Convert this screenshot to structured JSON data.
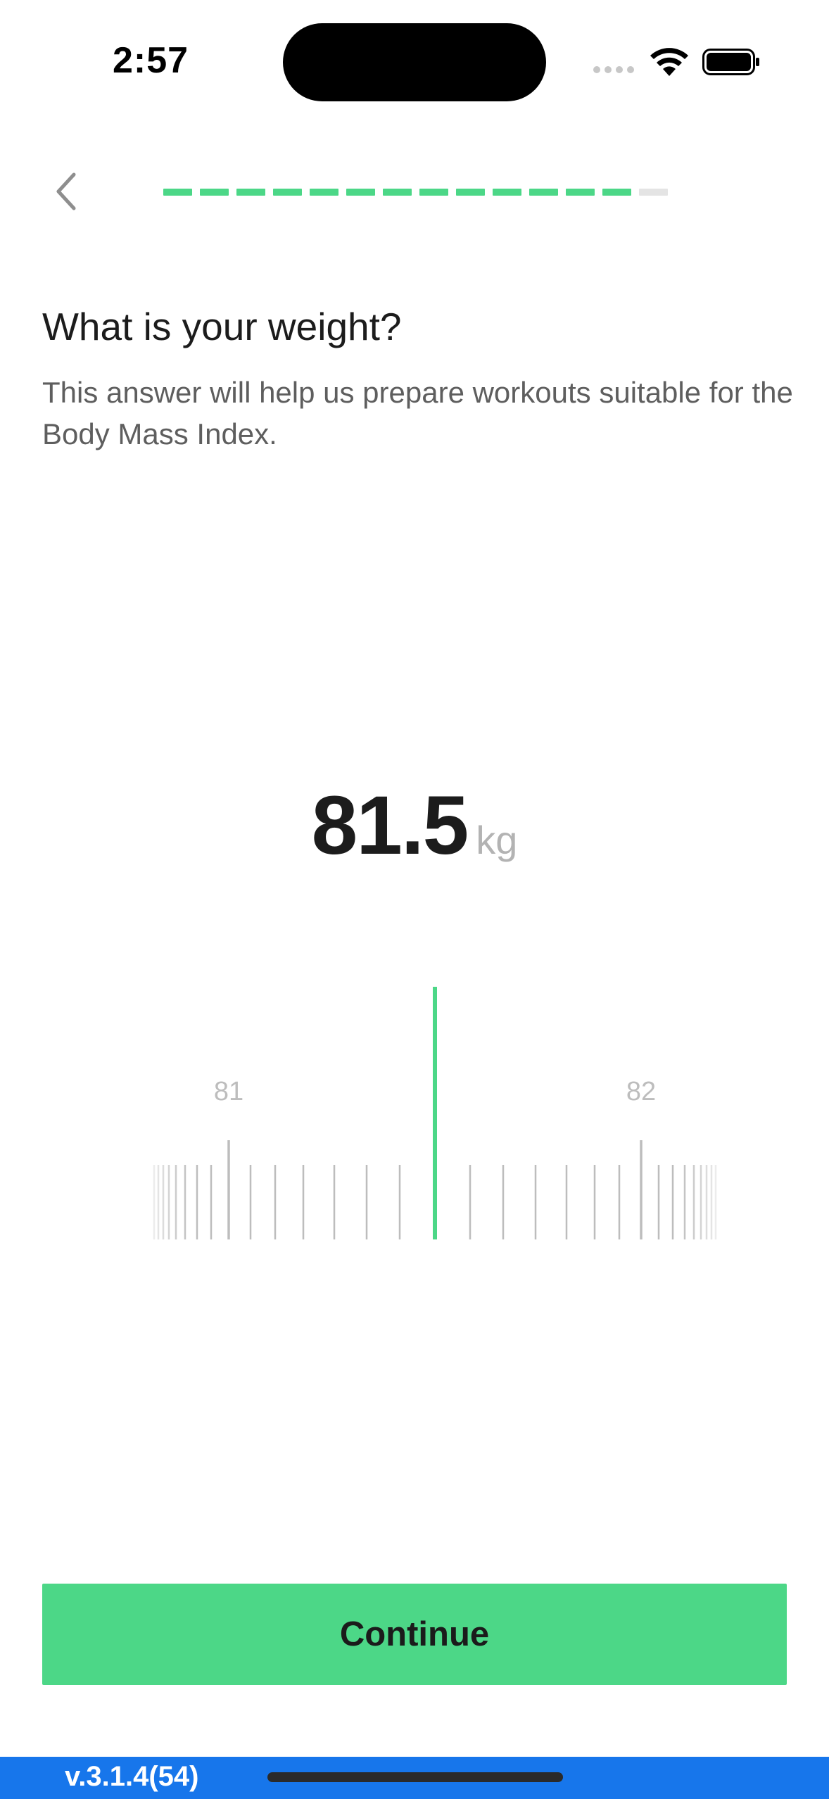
{
  "status_bar": {
    "time": "2:57",
    "icons": [
      "cellular-dots-icon",
      "wifi-icon",
      "battery-icon"
    ]
  },
  "header": {
    "back_icon": "chevron-left-icon",
    "progress": {
      "completed_steps": 13,
      "total_steps": 14
    }
  },
  "question": {
    "title": "What is your weight?",
    "subtitle": "This answer will help us prepare workouts suitable for the Body Mass Index."
  },
  "weight": {
    "value": "81.5",
    "unit": "kg"
  },
  "ruler": {
    "labels": [
      "81",
      "82"
    ],
    "selected": 81.5,
    "accent_color": "#4cd787"
  },
  "cta": {
    "label": "Continue",
    "color": "#4cd787"
  },
  "footer": {
    "version": "v.3.1.4(54)",
    "bar_color": "#1776eb"
  }
}
